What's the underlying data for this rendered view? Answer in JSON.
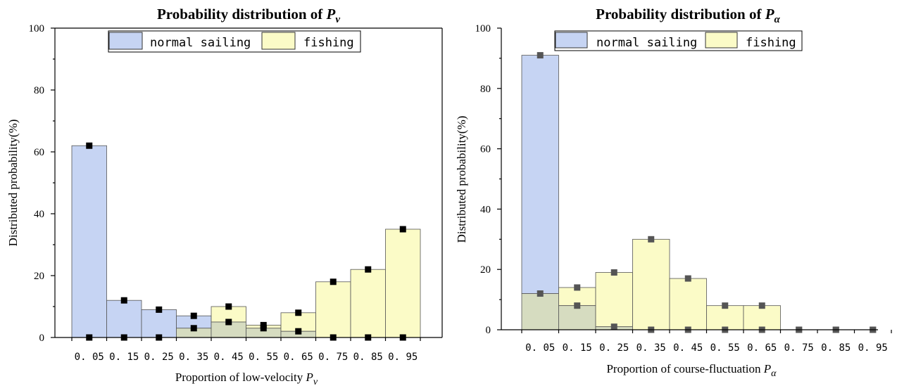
{
  "colors": {
    "normal_sailing": "#c6d4f3",
    "fishing": "#fbfbc7",
    "overlap": "#d6dcc0",
    "bar_edge": "#555555",
    "marker_left": "#000000",
    "marker_right": "#555555"
  },
  "chart_data": [
    {
      "type": "bar",
      "title": "Probability distribution of ",
      "title_symbol": "Pv",
      "xlabel": "Proportion of low-velocity ",
      "xlabel_symbol": "Pv",
      "ylabel": "Distributed probability(%)",
      "ylim": [
        0,
        100
      ],
      "yticks": [
        "0",
        "20",
        "40",
        "60",
        "80",
        "100"
      ],
      "categories": [
        "0.05",
        "0.15",
        "0.25",
        "0.35",
        "0.45",
        "0.55",
        "0.65",
        "0.75",
        "0.85",
        "0.95"
      ],
      "category_labels": [
        "0. 05",
        "0. 15",
        "0. 25",
        "0. 35",
        "0. 45",
        "0. 55",
        "0. 65",
        "0. 75",
        "0. 85",
        "0. 95"
      ],
      "legend_placement": "top-center",
      "series": [
        {
          "name": "normal sailing",
          "color_key": "normal_sailing",
          "values": [
            62,
            12,
            9,
            7,
            5,
            3,
            2,
            0,
            0,
            0
          ]
        },
        {
          "name": "fishing",
          "color_key": "fishing",
          "values": [
            0,
            0,
            0,
            3,
            10,
            4,
            8,
            18,
            22,
            35
          ]
        }
      ]
    },
    {
      "type": "bar",
      "title": "Probability distribution of ",
      "title_symbol": "Pα",
      "xlabel": "Proportion of course-fluctuation ",
      "xlabel_symbol": "Pα",
      "ylabel": "Distributed probability(%)",
      "ylim": [
        0,
        100
      ],
      "yticks": [
        "0",
        "20",
        "40",
        "60",
        "80",
        "100"
      ],
      "categories": [
        "0.05",
        "0.15",
        "0.25",
        "0.35",
        "0.45",
        "0.55",
        "0.65",
        "0.75",
        "0.85",
        "0.95"
      ],
      "category_labels": [
        "0. 05",
        "0. 15",
        "0. 25",
        "0. 35",
        "0. 45",
        "0. 55",
        "0. 65",
        "0. 75",
        "0. 85",
        "0. 95"
      ],
      "legend_placement": "top-center",
      "series": [
        {
          "name": "normal sailing",
          "color_key": "normal_sailing",
          "values": [
            91,
            8,
            1,
            0,
            0,
            0,
            0,
            0,
            0,
            0
          ]
        },
        {
          "name": "fishing",
          "color_key": "fishing",
          "values": [
            12,
            14,
            19,
            30,
            17,
            8,
            8,
            0,
            0,
            0
          ]
        }
      ]
    }
  ]
}
